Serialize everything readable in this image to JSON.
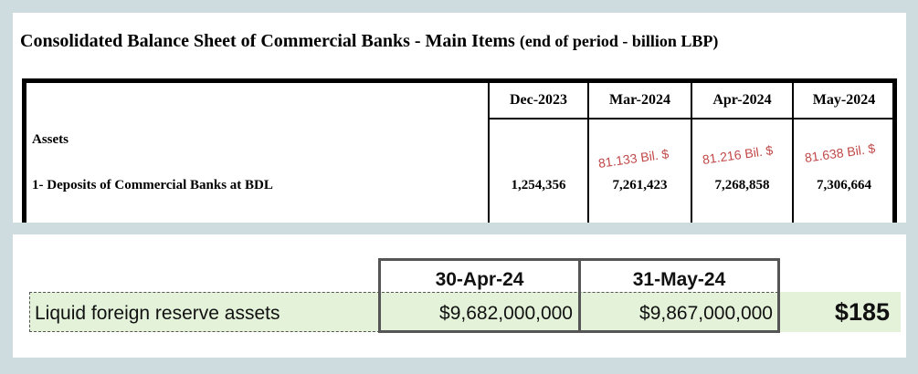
{
  "balance_sheet": {
    "title": "Consolidated Balance Sheet of Commercial Banks - Main Items",
    "subtitle": "(end of period - billion LBP)",
    "columns": [
      "Dec-2023",
      "Mar-2024",
      "Apr-2024",
      "May-2024"
    ],
    "section_label": "Assets",
    "row_label": "1- Deposits of Commercial Banks at BDL",
    "values": [
      "1,254,356",
      "7,261,423",
      "7,268,858",
      "7,306,664"
    ],
    "annotations": [
      "81.133 Bil. $",
      "81.216 Bil. $",
      "81.638 Bil. $"
    ],
    "annotation_color": "#c04848"
  },
  "reserves": {
    "columns": [
      "30-Apr-24",
      "31-May-24"
    ],
    "row_label": "Liquid foreign reserve assets",
    "values": [
      "$9,682,000,000",
      "$9,867,000,000"
    ],
    "difference": "$185",
    "highlight_color": "#e4f2da"
  }
}
